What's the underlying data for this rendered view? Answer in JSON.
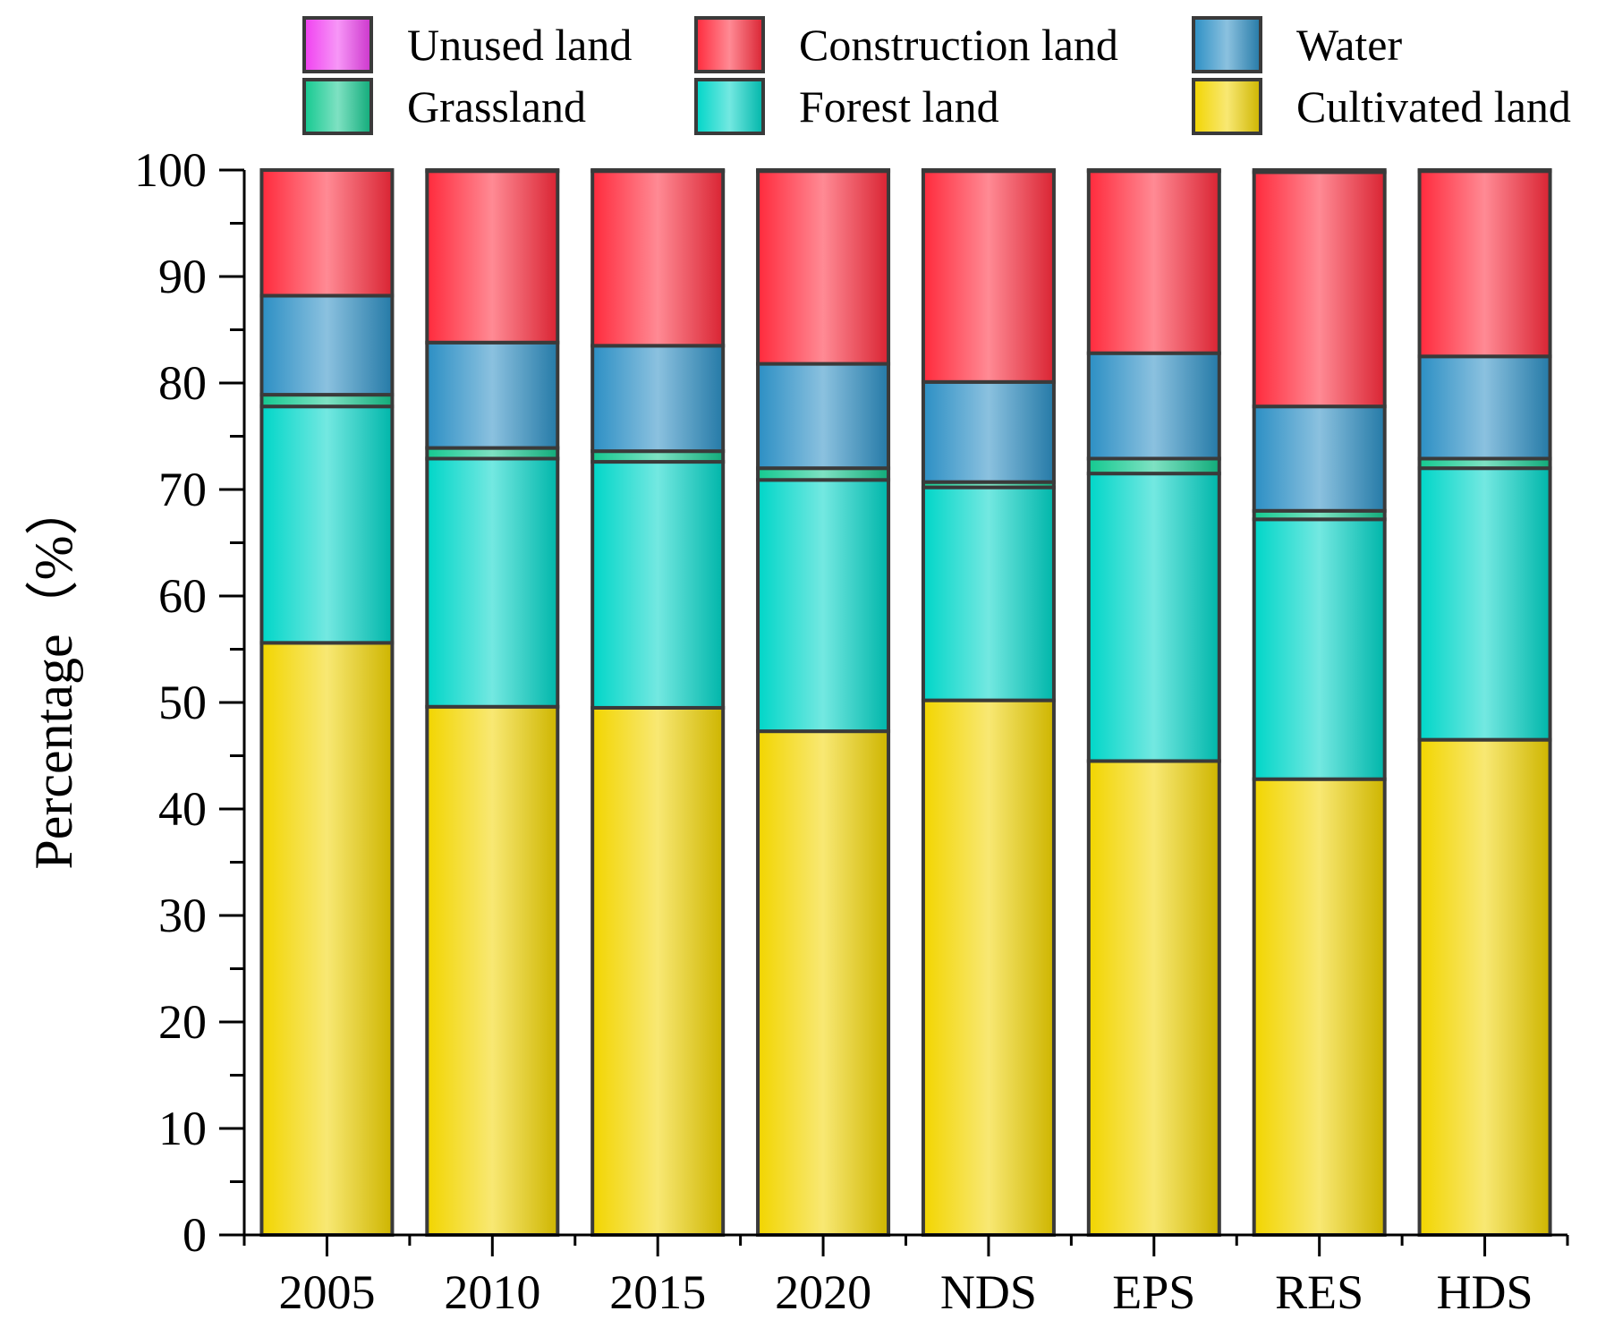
{
  "chart_data": {
    "type": "bar",
    "stacked": true,
    "title": "",
    "xlabel": "",
    "ylabel": "Percentage（%）",
    "ylim": [
      0,
      100
    ],
    "yticks": [
      "0",
      "10",
      "20",
      "30",
      "40",
      "50",
      "60",
      "70",
      "80",
      "90",
      "100"
    ],
    "categories": [
      "2005",
      "2010",
      "2015",
      "2020",
      "NDS",
      "EPS",
      "RES",
      "HDS"
    ],
    "series": [
      {
        "name": "Cultivated land",
        "color": "#F2D500",
        "values": [
          55.6,
          49.6,
          49.5,
          47.3,
          50.2,
          44.5,
          42.8,
          46.5
        ]
      },
      {
        "name": "Forest land",
        "color": "#00D6C8",
        "values": [
          22.2,
          23.3,
          23.1,
          23.6,
          20.0,
          27.0,
          24.4,
          25.5
        ]
      },
      {
        "name": "Grassland",
        "color": "#14C990",
        "values": [
          1.1,
          1.0,
          1.0,
          1.1,
          0.5,
          1.4,
          0.8,
          0.9
        ]
      },
      {
        "name": "Water",
        "color": "#2C8FC4",
        "values": [
          9.3,
          9.9,
          9.9,
          9.8,
          9.4,
          9.9,
          9.8,
          9.6
        ]
      },
      {
        "name": "Construction land",
        "color": "#FF2A3C",
        "values": [
          11.8,
          16.1,
          16.4,
          18.1,
          19.8,
          17.1,
          22.0,
          17.4
        ]
      },
      {
        "name": "Unused land",
        "color": "#F040F0",
        "values": [
          0.0,
          0.1,
          0.1,
          0.1,
          0.1,
          0.1,
          0.2,
          0.1
        ]
      }
    ],
    "legend": {
      "position": "top",
      "order": [
        "Unused land",
        "Construction land",
        "Water",
        "Grassland",
        "Forest land",
        "Cultivated land"
      ]
    }
  }
}
